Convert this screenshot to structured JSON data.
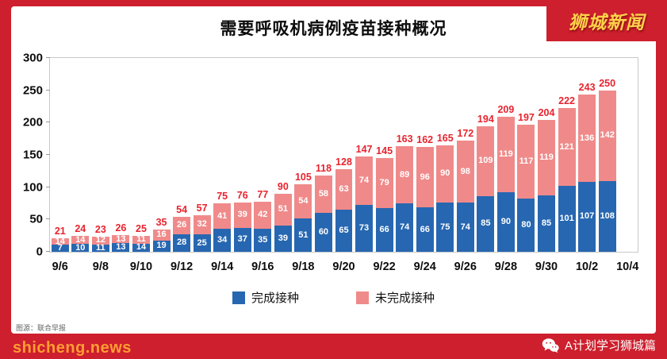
{
  "page": {
    "brand": "狮城新闻",
    "watermark": "shicheng.news",
    "footer_right": "A计划学习狮城篇",
    "caption": "图源：联合早报",
    "background_color": "#cd1f2d",
    "brand_color": "#ffd24a",
    "watermark_color": "#ff9d33"
  },
  "chart_data": {
    "type": "bar",
    "stacked": true,
    "title": "需要呼吸机病例疫苗接种概况",
    "x_tick_labels": [
      "9/6",
      "9/8",
      "9/10",
      "9/12",
      "9/14",
      "9/16",
      "9/18",
      "9/20",
      "9/22",
      "9/24",
      "9/26",
      "9/28",
      "9/30",
      "10/2",
      "10/4"
    ],
    "x_slots": 29,
    "categories": [
      "9/6",
      "9/7",
      "9/8",
      "9/9",
      "9/10",
      "9/11",
      "9/12",
      "9/13",
      "9/14",
      "9/15",
      "9/16",
      "9/17",
      "9/18",
      "9/19",
      "9/20",
      "9/21",
      "9/22",
      "9/23",
      "9/24",
      "9/25",
      "9/26",
      "9/27",
      "9/28",
      "9/29",
      "9/30",
      "10/1",
      "10/2",
      "10/3"
    ],
    "ylim": [
      0,
      300
    ],
    "y_ticks": [
      0,
      50,
      100,
      150,
      200,
      250,
      300
    ],
    "series": [
      {
        "name": "完成接种",
        "color": "#2767b1",
        "values": [
          7,
          10,
          11,
          13,
          14,
          19,
          28,
          25,
          34,
          37,
          35,
          39,
          51,
          60,
          65,
          73,
          66,
          74,
          66,
          75,
          74,
          85,
          90,
          80,
          85,
          101,
          107,
          108
        ]
      },
      {
        "name": "未完成接种",
        "color": "#f08a8a",
        "values": [
          14,
          14,
          12,
          13,
          11,
          16,
          26,
          32,
          41,
          39,
          42,
          51,
          54,
          58,
          63,
          74,
          79,
          89,
          96,
          90,
          98,
          109,
          119,
          117,
          119,
          121,
          136,
          142
        ]
      }
    ],
    "totals": [
      21,
      24,
      23,
      26,
      25,
      35,
      54,
      57,
      75,
      76,
      77,
      90,
      105,
      118,
      128,
      147,
      145,
      163,
      162,
      165,
      172,
      194,
      209,
      197,
      204,
      222,
      243,
      250
    ],
    "total_label_color": "#e8232e",
    "legend_position": "bottom",
    "grid": false
  }
}
